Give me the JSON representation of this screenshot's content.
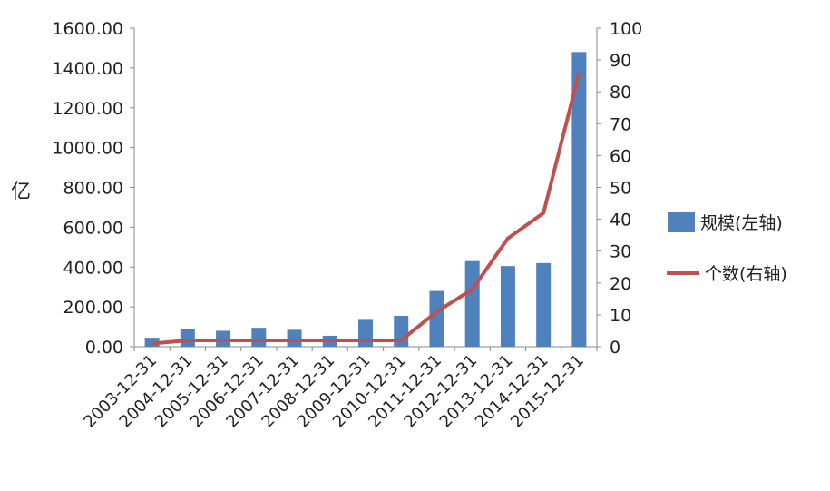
{
  "chart_data": {
    "type": "bar",
    "categories": [
      "2003-12-31",
      "2004-12-31",
      "2005-12-31",
      "2006-12-31",
      "2007-12-31",
      "2008-12-31",
      "2009-12-31",
      "2010-12-31",
      "2011-12-31",
      "2012-12-31",
      "2013-12-31",
      "2014-12-31",
      "2015-12-31"
    ],
    "series": [
      {
        "name": "规模(左轴)",
        "type": "bar",
        "axis": "left",
        "color": "#4f81bd",
        "values": [
          45,
          90,
          80,
          95,
          85,
          55,
          135,
          155,
          280,
          430,
          405,
          420,
          1480
        ]
      },
      {
        "name": "个数(右轴)",
        "type": "line",
        "axis": "right",
        "color": "#c0504d",
        "values": [
          1,
          2,
          2,
          2,
          2,
          2,
          2,
          2,
          11,
          18,
          34,
          42,
          86
        ]
      }
    ],
    "ylabel": "亿",
    "ylim": [
      0,
      1600
    ],
    "y_ticks_left": [
      "0.00",
      "200.00",
      "400.00",
      "600.00",
      "800.00",
      "1000.00",
      "1200.00",
      "1400.00",
      "1600.00"
    ],
    "y2lim": [
      0,
      100
    ],
    "y_ticks_right": [
      "0",
      "10",
      "20",
      "30",
      "40",
      "50",
      "60",
      "70",
      "80",
      "90",
      "100"
    ],
    "grid": false,
    "legend_position": "right"
  }
}
